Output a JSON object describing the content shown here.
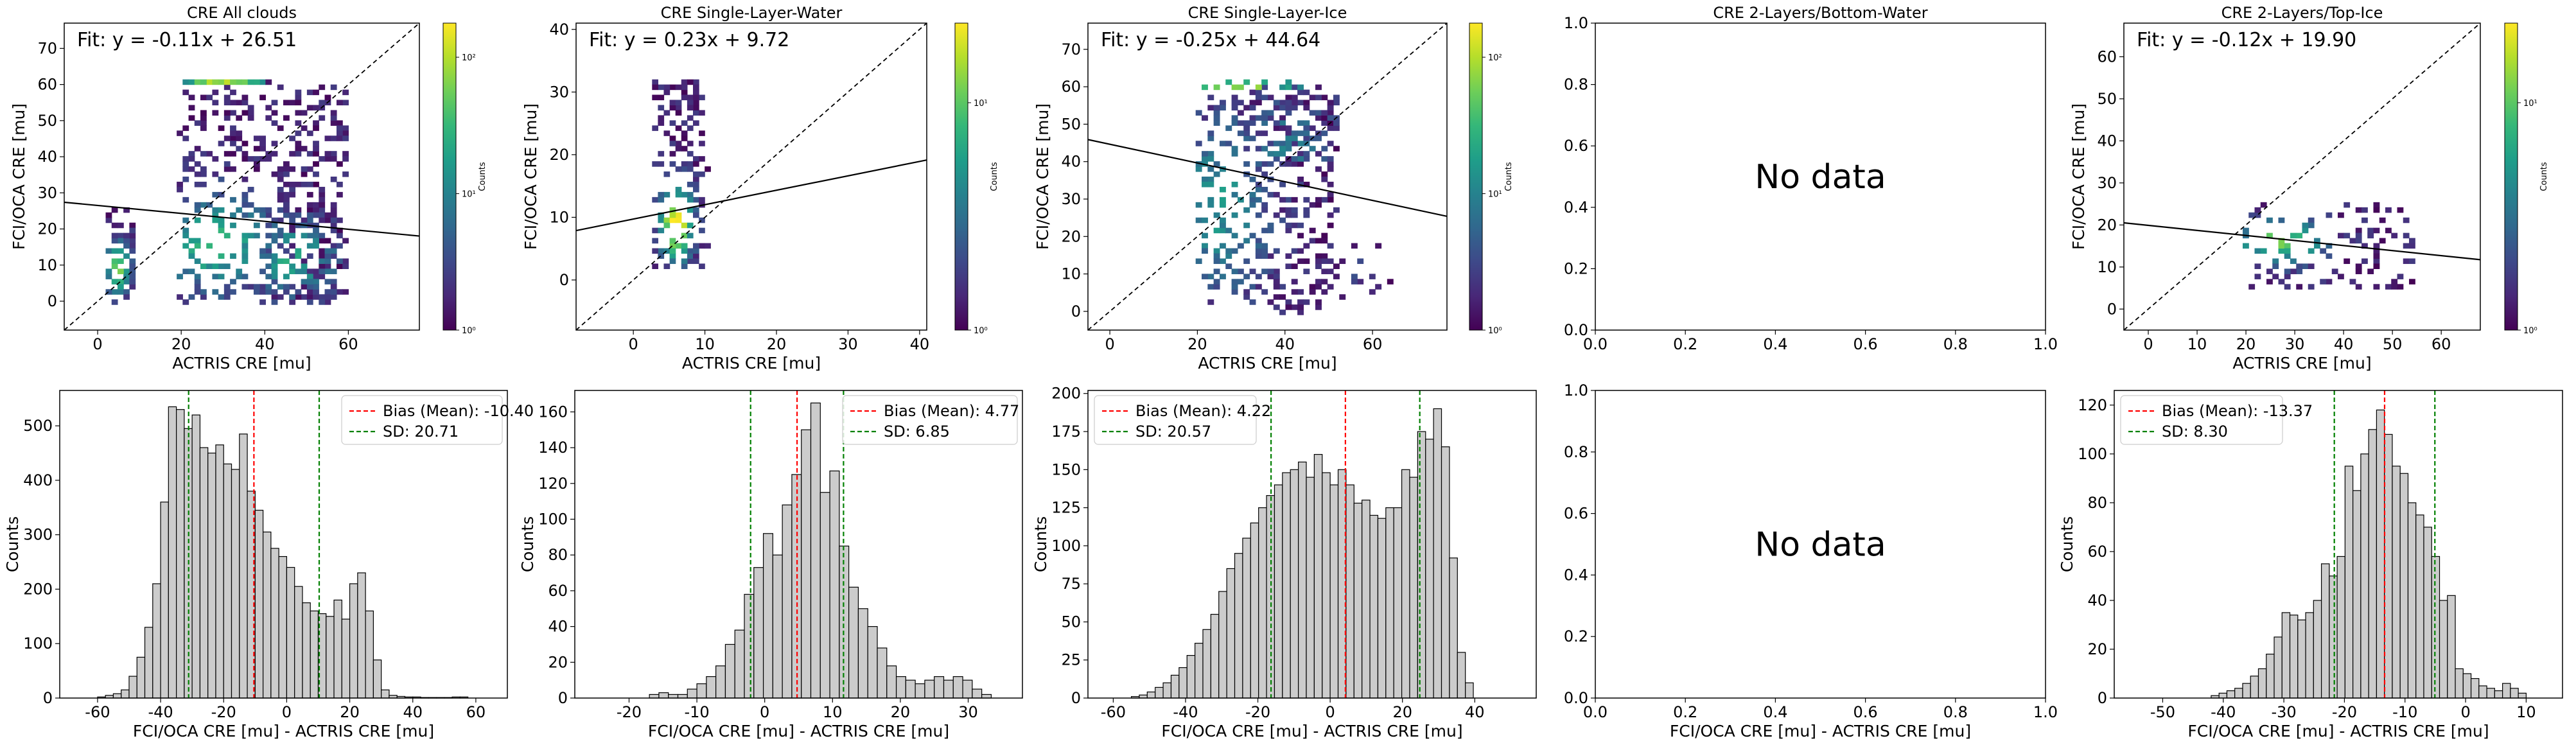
{
  "figure": {
    "no_data_label": "No data",
    "colorbar_label": "Counts",
    "colorbar_ticks": [
      "10⁰",
      "10¹",
      "10²"
    ],
    "colormap": [
      "#440154",
      "#482878",
      "#3e4989",
      "#31688e",
      "#26828e",
      "#1f9e89",
      "#35b779",
      "#6ece58",
      "#b5de2b",
      "#fde725"
    ],
    "hist_fill": "#cccccc",
    "bias_color": "#ff0000",
    "sd_color": "#008000"
  },
  "chart_data": [
    {
      "type": "heatmap",
      "title": "CRE All clouds",
      "xlabel": "ACTRIS CRE [mu]",
      "ylabel": "FCI/OCA CRE [mu]",
      "xlim": [
        -8,
        77
      ],
      "ylim": [
        -8,
        77
      ],
      "xticks": [
        0,
        20,
        40,
        60
      ],
      "yticks": [
        0,
        10,
        20,
        30,
        40,
        50,
        60,
        70
      ],
      "fit_text": "Fit: y = -0.11x + 26.51",
      "fit": {
        "slope": -0.11,
        "intercept": 26.51
      },
      "colorbar": {
        "label": "Counts",
        "scale": "log",
        "ticks": [
          "10⁰",
          "10¹",
          "10²"
        ]
      },
      "clusters": [
        {
          "x": [
            2,
            9
          ],
          "y": [
            0,
            25
          ],
          "fx": 5,
          "fy": 9,
          "sx": 2,
          "sy": 5,
          "peak": 0.65,
          "cells": 70
        },
        {
          "x": [
            20,
            60
          ],
          "y": [
            0,
            61
          ],
          "fx": 28,
          "fy": 16,
          "sx": 9,
          "sy": 9,
          "peak": 0.55,
          "cells": 430
        },
        {
          "x": [
            40,
            58
          ],
          "y": [
            0,
            25
          ],
          "fx": 47,
          "fy": 12,
          "sx": 7,
          "sy": 7,
          "peak": 0.5,
          "cells": 120
        },
        {
          "x": [
            20,
            40
          ],
          "y": [
            60,
            61
          ],
          "fx": 30,
          "fy": 60.5,
          "sx": 8,
          "sy": 1,
          "peak": 0.8,
          "cells": 20
        }
      ]
    },
    {
      "type": "heatmap",
      "title": "CRE Single-Layer-Water",
      "xlabel": "ACTRIS CRE [mu]",
      "ylabel": "FCI/OCA CRE [mu]",
      "xlim": [
        -8,
        41
      ],
      "ylim": [
        -8,
        41
      ],
      "xticks": [
        0,
        10,
        20,
        30,
        40
      ],
      "yticks": [
        0,
        10,
        20,
        30,
        40
      ],
      "fit_text": "Fit: y = 0.23x + 9.72",
      "fit": {
        "slope": 0.23,
        "intercept": 9.72
      },
      "colorbar": {
        "label": "Counts",
        "scale": "log",
        "ticks": [
          "10⁰",
          "10¹"
        ]
      },
      "clusters": [
        {
          "x": [
            3,
            10
          ],
          "y": [
            2,
            32
          ],
          "fx": 6,
          "fy": 9,
          "sx": 1.6,
          "sy": 4,
          "peak": 0.95,
          "cells": 170
        }
      ]
    },
    {
      "type": "heatmap",
      "title": "CRE Single-Layer-Ice",
      "xlabel": "ACTRIS CRE [mu]",
      "ylabel": "FCI/OCA CRE [mu]",
      "xlim": [
        -5,
        77
      ],
      "ylim": [
        -5,
        77
      ],
      "xticks": [
        0,
        20,
        40,
        60
      ],
      "yticks": [
        0,
        10,
        20,
        30,
        40,
        50,
        60,
        70
      ],
      "fit_text": "Fit: y = -0.25x + 44.64",
      "fit": {
        "slope": -0.25,
        "intercept": 44.64
      },
      "colorbar": {
        "label": "Counts",
        "scale": "log",
        "ticks": [
          "10⁰",
          "10¹",
          "10²"
        ]
      },
      "clusters": [
        {
          "x": [
            20,
            52
          ],
          "y": [
            0,
            58
          ],
          "fx": 25,
          "fy": 28,
          "sx": 8,
          "sy": 16,
          "peak": 0.4,
          "cells": 340
        },
        {
          "x": [
            30,
            52
          ],
          "y": [
            40,
            60
          ],
          "fx": 40,
          "fy": 45,
          "sx": 8,
          "sy": 8,
          "peak": 0.3,
          "cells": 80
        },
        {
          "x": [
            20,
            45
          ],
          "y": [
            60,
            61
          ],
          "fx": 30,
          "fy": 60.5,
          "sx": 10,
          "sy": 1,
          "peak": 0.85,
          "cells": 18
        },
        {
          "x": [
            52,
            65
          ],
          "y": [
            2,
            20
          ],
          "fx": 55,
          "fy": 10,
          "sx": 3,
          "sy": 5,
          "peak": 0.1,
          "cells": 12
        }
      ]
    },
    {
      "type": "heatmap",
      "title": "CRE 2-Layers/Bottom-Water",
      "xlabel": "",
      "ylabel": "",
      "xlim": [
        0,
        1
      ],
      "ylim": [
        0,
        1
      ],
      "xticks": [
        "0.0",
        "0.2",
        "0.4",
        "0.6",
        "0.8",
        "1.0"
      ],
      "yticks": [
        "0.0",
        "0.2",
        "0.4",
        "0.6",
        "0.8",
        "1.0"
      ],
      "no_data": true
    },
    {
      "type": "heatmap",
      "title": "CRE 2-Layers/Top-Ice",
      "xlabel": "ACTRIS CRE [mu]",
      "ylabel": "FCI/OCA CRE [mu]",
      "xlim": [
        -5,
        68
      ],
      "ylim": [
        -5,
        68
      ],
      "xticks": [
        0,
        10,
        20,
        30,
        40,
        50,
        60
      ],
      "yticks": [
        0,
        10,
        20,
        30,
        40,
        50,
        60
      ],
      "fit_text": "Fit: y = -0.12x + 19.90",
      "fit": {
        "slope": -0.12,
        "intercept": 19.9
      },
      "colorbar": {
        "label": "Counts",
        "scale": "log",
        "ticks": [
          "10⁰",
          "10¹"
        ]
      },
      "clusters": [
        {
          "x": [
            20,
            54
          ],
          "y": [
            5,
            25
          ],
          "fx": 27,
          "fy": 16,
          "sx": 6,
          "sy": 3.5,
          "peak": 0.7,
          "cells": 120
        }
      ]
    },
    {
      "type": "bar",
      "subtype": "histogram",
      "xlabel": "FCI/OCA CRE [mu] - ACTRIS CRE [mu]",
      "ylabel": "Counts",
      "xlim": [
        -72,
        70
      ],
      "ylim": [
        0,
        565
      ],
      "xticks": [
        -60,
        -40,
        -20,
        0,
        20,
        40,
        60
      ],
      "yticks": [
        0,
        100,
        200,
        300,
        400,
        500
      ],
      "bin_start": -60,
      "bin_width": 2.5,
      "values": [
        2,
        5,
        8,
        15,
        40,
        75,
        130,
        210,
        360,
        535,
        530,
        495,
        520,
        460,
        450,
        465,
        430,
        420,
        485,
        380,
        345,
        305,
        275,
        260,
        240,
        205,
        175,
        160,
        155,
        150,
        180,
        145,
        210,
        230,
        160,
        70,
        15,
        5,
        3,
        2,
        2,
        1,
        1,
        1,
        1,
        2,
        2
      ],
      "bias": -10.4,
      "sd": 20.71,
      "legend": [
        "Bias (Mean): -10.40",
        "SD: 20.71"
      ]
    },
    {
      "type": "bar",
      "subtype": "histogram",
      "xlabel": "FCI/OCA CRE [mu] - ACTRIS CRE [mu]",
      "ylabel": "Counts",
      "xlim": [
        -28,
        38
      ],
      "ylim": [
        0,
        172
      ],
      "xticks": [
        -20,
        -10,
        0,
        10,
        20,
        30
      ],
      "yticks": [
        0,
        20,
        40,
        60,
        80,
        100,
        120,
        140,
        160
      ],
      "bin_start": -17,
      "bin_width": 1.4,
      "values": [
        2,
        3,
        2,
        2,
        5,
        8,
        12,
        18,
        30,
        38,
        58,
        73,
        92,
        80,
        108,
        125,
        150,
        165,
        115,
        127,
        85,
        62,
        50,
        40,
        28,
        18,
        12,
        10,
        8,
        10,
        12,
        10,
        12,
        10,
        5,
        2
      ],
      "bias": 4.77,
      "sd": 6.85,
      "legend": [
        "Bias (Mean): 4.77",
        "SD: 6.85"
      ]
    },
    {
      "type": "bar",
      "subtype": "histogram",
      "xlabel": "FCI/OCA CRE [mu] - ACTRIS CRE [mu]",
      "ylabel": "Counts",
      "xlim": [
        -67,
        57
      ],
      "ylim": [
        0,
        202
      ],
      "xticks": [
        -60,
        -40,
        -20,
        0,
        20,
        40
      ],
      "yticks": [
        0,
        25,
        50,
        75,
        100,
        125,
        150,
        175,
        200
      ],
      "bin_start": -55,
      "bin_width": 2.2,
      "values": [
        1,
        2,
        4,
        7,
        10,
        15,
        20,
        28,
        36,
        45,
        55,
        70,
        85,
        95,
        105,
        115,
        125,
        133,
        140,
        148,
        150,
        155,
        145,
        160,
        148,
        140,
        150,
        140,
        128,
        130,
        120,
        118,
        125,
        125,
        150,
        145,
        175,
        170,
        190,
        165,
        92,
        30,
        10
      ],
      "bias": 4.22,
      "sd": 20.57,
      "legend": [
        "Bias (Mean): 4.22",
        "SD: 20.57"
      ]
    },
    {
      "type": "bar",
      "subtype": "histogram",
      "xlabel": "FCI/OCA CRE [mu] - ACTRIS CRE [mu]",
      "ylabel": "",
      "xlim": [
        0,
        1
      ],
      "ylim": [
        0,
        1
      ],
      "xticks": [
        "0.0",
        "0.2",
        "0.4",
        "0.6",
        "0.8",
        "1.0"
      ],
      "yticks": [
        "0.0",
        "0.2",
        "0.4",
        "0.6",
        "0.8",
        "1.0"
      ],
      "no_data": true
    },
    {
      "type": "bar",
      "subtype": "histogram",
      "xlabel": "FCI/OCA CRE [mu] - ACTRIS CRE [mu]",
      "ylabel": "Counts",
      "xlim": [
        -58,
        16
      ],
      "ylim": [
        0,
        126
      ],
      "xticks": [
        -50,
        -40,
        -30,
        -20,
        -10,
        0,
        10
      ],
      "yticks": [
        0,
        20,
        40,
        60,
        80,
        100,
        120
      ],
      "bin_start": -42,
      "bin_width": 1.3,
      "values": [
        1,
        2,
        3,
        4,
        6,
        9,
        12,
        18,
        25,
        35,
        34,
        32,
        35,
        40,
        55,
        50,
        58,
        95,
        85,
        100,
        110,
        118,
        108,
        95,
        92,
        80,
        75,
        70,
        58,
        40,
        42,
        12,
        10,
        8,
        5,
        4,
        3,
        6,
        4,
        2
      ],
      "bias": -13.37,
      "sd": 8.3,
      "legend": [
        "Bias (Mean): -13.37",
        "SD: 8.30"
      ]
    }
  ]
}
